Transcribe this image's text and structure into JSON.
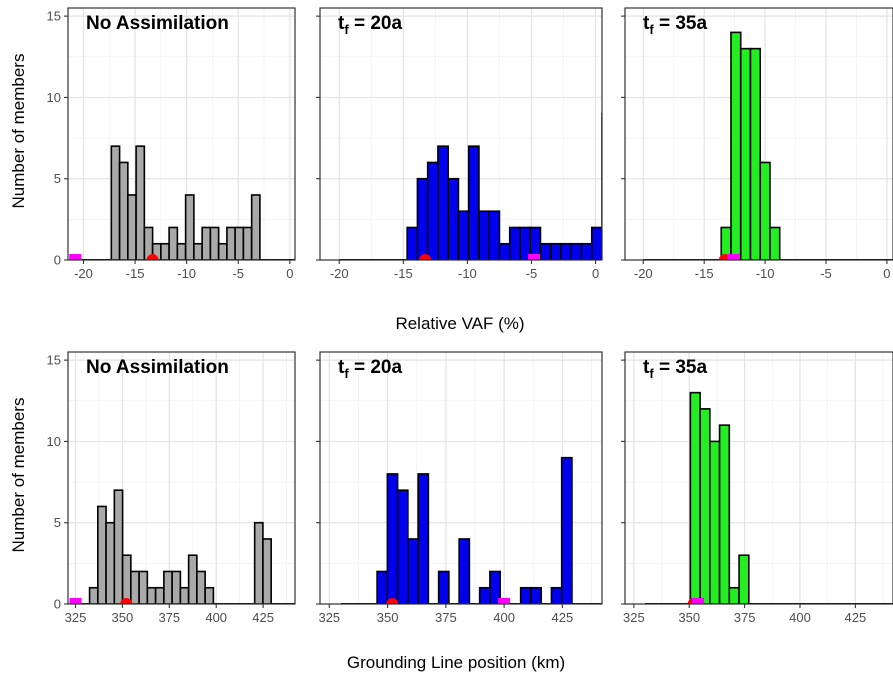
{
  "figure": {
    "y_axis_title": "Number of members",
    "row_x_titles": [
      "Relative VAF (%)",
      "Grounding Line position (km)"
    ]
  },
  "chart_data": [
    {
      "type": "bar",
      "row": 0,
      "col": 0,
      "title": "No Assimilation",
      "title_sub": "",
      "fill": "#a9a9a9",
      "xlim": [
        -21.5,
        0.5
      ],
      "ylim": [
        0,
        15.5
      ],
      "xticks": [
        -20,
        -15,
        -10,
        -5,
        0
      ],
      "xtick_labels": [
        "-20",
        "-15",
        "-10",
        "-5",
        "0"
      ],
      "yticks": [
        0,
        5,
        10,
        15
      ],
      "ytick_labels": [
        "0",
        "5",
        "10",
        "15"
      ],
      "bin_start": -17.3,
      "bin_width": 0.8,
      "baseline_from": -20.8,
      "counts": [
        7,
        6,
        4,
        7,
        2,
        1,
        1,
        2,
        1,
        4,
        1,
        2,
        2,
        1,
        2,
        2,
        2,
        4
      ],
      "red_dot": -13.3,
      "magenta_square": -20.8
    },
    {
      "type": "bar",
      "row": 0,
      "col": 1,
      "title": "t",
      "title_sub": "f",
      "title_rest": " = 20a",
      "fill": "#0000ee",
      "xlim": [
        -21.5,
        0.5
      ],
      "ylim": [
        0,
        15.5
      ],
      "xticks": [
        -20,
        -15,
        -10,
        -5,
        0
      ],
      "xtick_labels": [
        "-20",
        "-15",
        "-10",
        "-5",
        "0"
      ],
      "yticks": [
        0,
        5,
        10,
        15
      ],
      "ytick_labels": [
        "",
        "",
        "",
        ""
      ],
      "bin_start": -14.7,
      "bin_width": 0.8,
      "baseline_from": -20,
      "counts": [
        2,
        5,
        6,
        7,
        5,
        3,
        7,
        3,
        3,
        1,
        2,
        2,
        2,
        1,
        1,
        1,
        1,
        1,
        2,
        9
      ],
      "red_dot": -13.3,
      "magenta_square": -4.8
    },
    {
      "type": "bar",
      "row": 0,
      "col": 2,
      "title": "t",
      "title_sub": "f",
      "title_rest": " = 35a",
      "fill": "#22ee22",
      "xlim": [
        -21.5,
        0.5
      ],
      "ylim": [
        0,
        15.5
      ],
      "xticks": [
        -20,
        -15,
        -10,
        -5,
        0
      ],
      "xtick_labels": [
        "-20",
        "-15",
        "-10",
        "-5",
        "0"
      ],
      "yticks": [
        0,
        5,
        10,
        15
      ],
      "ytick_labels": [
        "",
        "",
        "",
        ""
      ],
      "bin_start": -13.6,
      "bin_width": 0.8,
      "baseline_from": -20,
      "counts": [
        2,
        14,
        13,
        13,
        6,
        2
      ],
      "red_dot": -13.3,
      "magenta_square": -12.6
    },
    {
      "type": "bar",
      "row": 1,
      "col": 0,
      "title": "No Assimilation",
      "title_sub": "",
      "fill": "#a9a9a9",
      "xlim": [
        321,
        442
      ],
      "ylim": [
        0,
        15.5
      ],
      "xticks": [
        325,
        350,
        375,
        400,
        425
      ],
      "xtick_labels": [
        "325",
        "350",
        "375",
        "400",
        "425"
      ],
      "yticks": [
        0,
        5,
        10,
        15
      ],
      "ytick_labels": [
        "0",
        "5",
        "10",
        "15"
      ],
      "bin_start": 332.5,
      "bin_width": 4.4,
      "baseline_from": 325,
      "counts": [
        1,
        6,
        5,
        7,
        3,
        2,
        2,
        1,
        1,
        2,
        2,
        1,
        3,
        2,
        1,
        0,
        0,
        0,
        0,
        0,
        5,
        4
      ],
      "red_dot": 352,
      "magenta_square": 325
    },
    {
      "type": "bar",
      "row": 1,
      "col": 1,
      "title": "t",
      "title_sub": "f",
      "title_rest": " = 20a",
      "fill": "#0000ee",
      "xlim": [
        321,
        442
      ],
      "ylim": [
        0,
        15.5
      ],
      "xticks": [
        325,
        350,
        375,
        400,
        425
      ],
      "xtick_labels": [
        "325",
        "350",
        "375",
        "400",
        "425"
      ],
      "yticks": [
        0,
        5,
        10,
        15
      ],
      "ytick_labels": [
        "",
        "",
        "",
        ""
      ],
      "bin_start": 345.5,
      "bin_width": 4.4,
      "baseline_from": 330,
      "counts": [
        2,
        8,
        7,
        4,
        8,
        0,
        2,
        0,
        4,
        0,
        1,
        2,
        0,
        0,
        1,
        1,
        0,
        1,
        9
      ],
      "red_dot": 352,
      "magenta_square": 400
    },
    {
      "type": "bar",
      "row": 1,
      "col": 2,
      "title": "t",
      "title_sub": "f",
      "title_rest": " = 35a",
      "fill": "#22ee22",
      "xlim": [
        321,
        442
      ],
      "ylim": [
        0,
        15.5
      ],
      "xticks": [
        325,
        350,
        375,
        400,
        425
      ],
      "xtick_labels": [
        "325",
        "350",
        "375",
        "400",
        "425"
      ],
      "yticks": [
        0,
        5,
        10,
        15
      ],
      "ytick_labels": [
        "",
        "",
        "",
        ""
      ],
      "bin_start": 350.5,
      "bin_width": 4.4,
      "baseline_from": 330,
      "counts": [
        13,
        12,
        10,
        11,
        1,
        3
      ],
      "red_dot": 352,
      "magenta_square": 354
    }
  ]
}
